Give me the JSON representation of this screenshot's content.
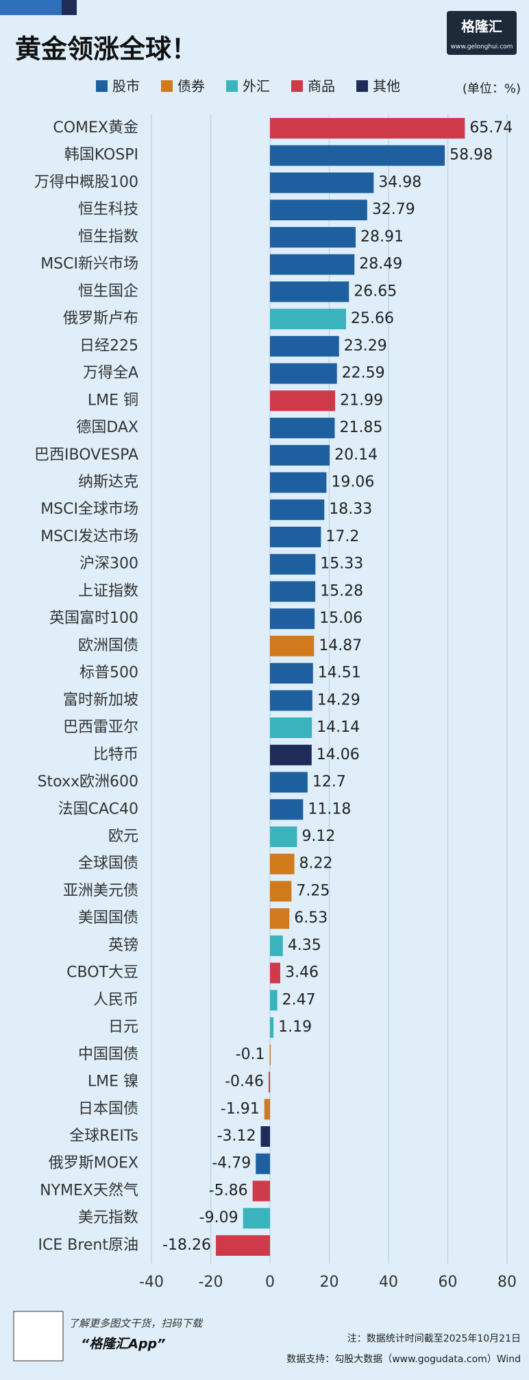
{
  "chart_data": {
    "type": "barh",
    "title": "黄金领涨全球！",
    "unit": "(单位：%)",
    "categories": [
      "COMEX黄金",
      "韩国KOSPI",
      "万得中概股100",
      "恒生科技",
      "恒生指数",
      "MSCI新兴市场",
      "恒生国企",
      "俄罗斯卢布",
      "日经225",
      "万得全A",
      "LME 铜",
      "德国DAX",
      "巴西IBOVESPA",
      "纳斯达克",
      "MSCI全球市场",
      "MSCI发达市场",
      "沪深300",
      "上证指数",
      "英国富时100",
      "欧洲国债",
      "标普500",
      "富时新加坡",
      "巴西雷亚尔",
      "比特币",
      "Stoxx欧洲600",
      "法国CAC40",
      "欧元",
      "全球国债",
      "亚洲美元债",
      "美国国债",
      "英镑",
      "CBOT大豆",
      "人民币",
      "日元",
      "中国国债",
      "LME 镍",
      "日本国债",
      "全球REITs",
      "俄罗斯MOEX",
      "NYMEX天然气",
      "美元指数",
      "ICE Brent原油"
    ],
    "series": [
      {
        "name": "股市",
        "color": "#1d5f9f",
        "values": [
          null,
          58.98,
          34.98,
          32.79,
          28.91,
          28.49,
          26.65,
          null,
          23.29,
          22.59,
          null,
          21.85,
          20.14,
          19.06,
          18.33,
          17.2,
          15.33,
          15.28,
          15.06,
          null,
          14.51,
          14.29,
          null,
          null,
          12.7,
          11.18,
          null,
          null,
          null,
          null,
          null,
          null,
          null,
          null,
          null,
          null,
          null,
          null,
          -4.79,
          null,
          null,
          null
        ]
      },
      {
        "name": "债券",
        "color": "#d07a1c",
        "values": [
          null,
          null,
          null,
          null,
          null,
          null,
          null,
          null,
          null,
          null,
          null,
          null,
          null,
          null,
          null,
          null,
          null,
          null,
          null,
          14.87,
          null,
          null,
          null,
          null,
          null,
          null,
          null,
          8.22,
          7.25,
          6.53,
          null,
          null,
          null,
          null,
          -0.1,
          null,
          -1.91,
          null,
          null,
          null,
          null,
          null
        ]
      },
      {
        "name": "外汇",
        "color": "#3ab3bd",
        "values": [
          null,
          null,
          null,
          null,
          null,
          null,
          null,
          25.66,
          null,
          null,
          null,
          null,
          null,
          null,
          null,
          null,
          null,
          null,
          null,
          null,
          null,
          null,
          14.14,
          null,
          null,
          null,
          9.12,
          null,
          null,
          null,
          4.35,
          null,
          2.47,
          1.19,
          null,
          null,
          null,
          null,
          null,
          null,
          -9.09,
          null
        ]
      },
      {
        "name": "商品",
        "color": "#cf3a4a",
        "values": [
          65.74,
          null,
          null,
          null,
          null,
          null,
          null,
          null,
          null,
          null,
          21.99,
          null,
          null,
          null,
          null,
          null,
          null,
          null,
          null,
          null,
          null,
          null,
          null,
          null,
          null,
          null,
          null,
          null,
          null,
          null,
          null,
          3.46,
          null,
          null,
          null,
          -0.46,
          null,
          null,
          null,
          -5.86,
          null,
          -18.26
        ]
      },
      {
        "name": "其他",
        "color": "#1f2b58",
        "values": [
          null,
          null,
          null,
          null,
          null,
          null,
          null,
          null,
          null,
          null,
          null,
          null,
          null,
          null,
          null,
          null,
          null,
          null,
          null,
          null,
          null,
          null,
          null,
          14.06,
          null,
          null,
          null,
          null,
          null,
          null,
          null,
          null,
          null,
          null,
          null,
          null,
          null,
          -3.12,
          null,
          null,
          null,
          null
        ]
      }
    ],
    "xlim": [
      -40,
      80
    ],
    "xticks": [
      -40,
      -20,
      0,
      20,
      40,
      60,
      80
    ],
    "grid": true
  },
  "brand": {
    "name": "格隆汇",
    "url": "www.gelonghui.com"
  },
  "footer": {
    "promo": "了解更多图文干货，扫码下载",
    "app": "“格隆汇App”",
    "note": "注：数据统计时间截至2025年10月21日",
    "source": "数据支持：勾股大数据（www.gogudata.com）Wind"
  }
}
